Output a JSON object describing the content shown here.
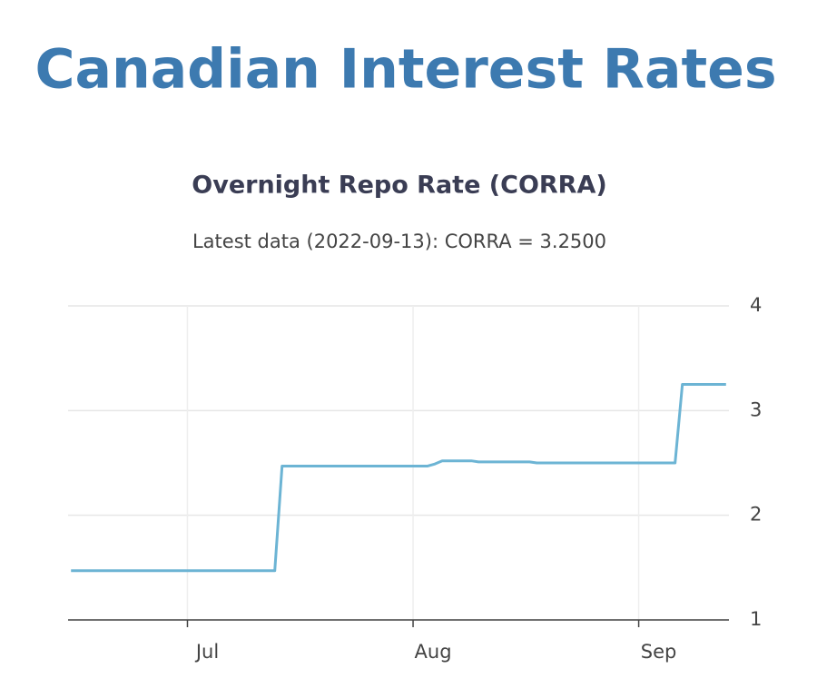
{
  "heading": "Canadian Interest Rates",
  "chart_data": {
    "type": "line",
    "title": "Overnight Repo Rate (CORRA)",
    "subtitle": "Latest data (2022-09-13): CORRA = 3.2500",
    "categories": [
      null,
      null,
      null,
      null,
      null,
      null,
      null,
      null,
      null,
      null,
      null,
      null,
      null,
      null,
      null,
      null,
      "Jul",
      null,
      null,
      null,
      null,
      null,
      null,
      null,
      null,
      null,
      null,
      null,
      null,
      null,
      null,
      null,
      null,
      null,
      null,
      null,
      null,
      null,
      null,
      null,
      null,
      null,
      null,
      null,
      null,
      null,
      null,
      "Aug",
      null,
      null,
      null,
      null,
      null,
      null,
      null,
      null,
      null,
      null,
      null,
      null,
      null,
      null,
      null,
      null,
      null,
      null,
      null,
      null,
      null,
      null,
      null,
      null,
      null,
      null,
      null,
      null,
      null,
      null,
      "Sep",
      null,
      null,
      null,
      null,
      null,
      null,
      null,
      null,
      null,
      null,
      null,
      null
    ],
    "values": [
      1.47,
      1.47,
      1.47,
      1.47,
      1.47,
      1.47,
      1.47,
      1.47,
      1.47,
      1.47,
      1.47,
      1.47,
      1.47,
      1.47,
      1.47,
      1.47,
      1.47,
      1.47,
      1.47,
      1.47,
      1.47,
      1.47,
      1.47,
      1.47,
      1.47,
      1.47,
      1.47,
      1.47,
      1.47,
      2.47,
      2.47,
      2.47,
      2.47,
      2.47,
      2.47,
      2.47,
      2.47,
      2.47,
      2.47,
      2.47,
      2.47,
      2.47,
      2.47,
      2.47,
      2.47,
      2.47,
      2.47,
      2.47,
      2.47,
      2.47,
      2.49,
      2.52,
      2.52,
      2.52,
      2.52,
      2.52,
      2.51,
      2.51,
      2.51,
      2.51,
      2.51,
      2.51,
      2.51,
      2.51,
      2.5,
      2.5,
      2.5,
      2.5,
      2.5,
      2.5,
      2.5,
      2.5,
      2.5,
      2.5,
      2.5,
      2.5,
      2.5,
      2.5,
      2.5,
      2.5,
      2.5,
      2.5,
      2.5,
      2.5,
      3.25,
      3.25,
      3.25,
      3.25,
      3.25,
      3.25,
      3.25
    ],
    "color": "#6cb4d4",
    "ylim": [
      1,
      4
    ],
    "yticks": [
      1,
      2,
      3,
      4
    ],
    "grid": true
  }
}
